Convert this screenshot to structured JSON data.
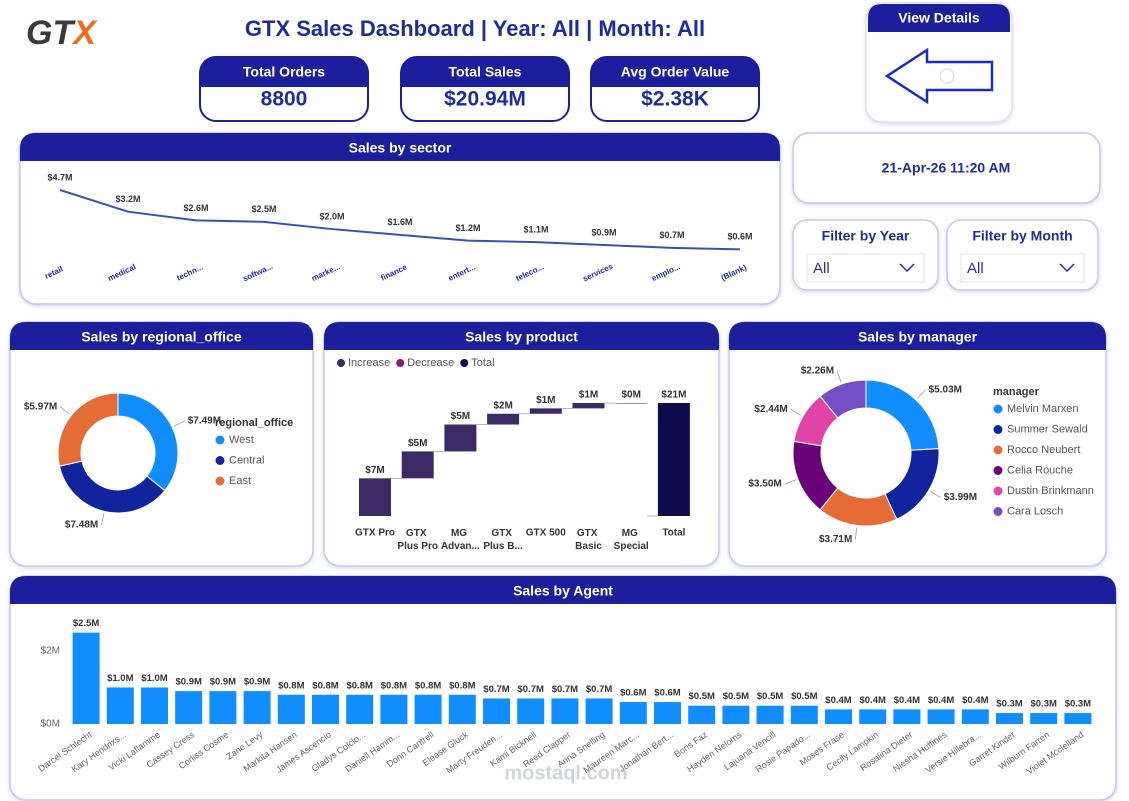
{
  "header": {
    "logo": "GTX",
    "title": "GTX Sales Dashboard | Year: All | Month: All",
    "button": "View Details"
  },
  "kpis": [
    {
      "label": "Total Orders",
      "value": "8800"
    },
    {
      "label": "Total Sales",
      "value": "$20.94M"
    },
    {
      "label": "Avg Order Value",
      "value": "$2.38K"
    }
  ],
  "datetime": "21-Apr-26 11:20 AM",
  "filters": [
    {
      "label": "Filter by Year",
      "value": "All"
    },
    {
      "label": "Filter by Month",
      "value": "All"
    }
  ],
  "watermark": "mostaql.com",
  "chart_data": [
    {
      "type": "line",
      "title": "Sales by sector",
      "categories": [
        "retail",
        "medical",
        "techn...",
        "softwa...",
        "marke...",
        "finance",
        "entert...",
        "teleco...",
        "services",
        "emplo...",
        "(Blank)"
      ],
      "values": [
        4.7,
        3.2,
        2.6,
        2.5,
        2.0,
        1.6,
        1.2,
        1.1,
        0.9,
        0.7,
        0.6
      ],
      "value_labels": [
        "$4.7M",
        "$3.2M",
        "$2.6M",
        "$2.5M",
        "$2.0M",
        "$1.6M",
        "$1.2M",
        "$1.1M",
        "$0.9M",
        "$0.7M",
        "$0.6M"
      ],
      "color": "#3F4FB0"
    },
    {
      "type": "donut",
      "title": "Sales by regional_office",
      "legend_title": "regional_office",
      "categories": [
        "West",
        "Central",
        "East"
      ],
      "values": [
        7.49,
        7.48,
        5.97
      ],
      "value_labels": [
        "$7.49M",
        "$7.48M",
        "$5.97M"
      ],
      "colors": [
        "#118DFF",
        "#12239E",
        "#E66C37"
      ]
    },
    {
      "type": "waterfall",
      "title": "Sales by product",
      "legend": [
        {
          "name": "Increase",
          "color": "#3B2A63"
        },
        {
          "name": "Decrease",
          "color": "#8A1C6E"
        },
        {
          "name": "Total",
          "color": "#0E0C4A"
        }
      ],
      "categories": [
        "GTX Pro",
        "GTX Plus Pro",
        "MG Advan...",
        "GTX Plus B...",
        "GTX 500",
        "GTX Basic",
        "MG Special",
        "Total"
      ],
      "values": [
        7,
        5,
        5,
        2,
        1,
        1,
        0,
        21
      ],
      "value_labels": [
        "$7M",
        "$5M",
        "$5M",
        "$2M",
        "$1M",
        "$1M",
        "$0M",
        "$21M"
      ]
    },
    {
      "type": "donut",
      "title": "Sales by manager",
      "legend_title": "manager",
      "categories": [
        "Melvin Marxen",
        "Summer Sewald",
        "Rocco Neubert",
        "Celia Rouche",
        "Dustin Brinkmann",
        "Cara Losch"
      ],
      "values": [
        5.03,
        3.99,
        3.71,
        3.5,
        2.44,
        2.26
      ],
      "value_labels": [
        "$5.03M",
        "$3.99M",
        "$3.71M",
        "$3.50M",
        "$2.44M",
        "$2.26M"
      ],
      "colors": [
        "#118DFF",
        "#12239E",
        "#E66C37",
        "#6B007B",
        "#E044A7",
        "#744EC2"
      ]
    },
    {
      "type": "bar",
      "title": "Sales by Agent",
      "categories": [
        "Darcel Schlecht",
        "Kary Hendrixs...",
        "Vicki Laflamme",
        "Cassey Cress",
        "Corliss Cosme",
        "Zane Levy",
        "Markita Hansen",
        "James Ascencio",
        "Gladys Colclo...",
        "Daniell Hamm...",
        "Donn Cantrell",
        "Elease Gluck",
        "Marty Freuden...",
        "Kami Bicknell",
        "Reed Clapper",
        "Anna Snelling",
        "Maureen Marc...",
        "Jonathan Bert...",
        "Boris Faz",
        "Hayden Neloms",
        "Lajuana Vencill",
        "Rosie Papado...",
        "Moses Frase",
        "Cecily Lampkin",
        "Rosalina Dieter",
        "Niesha Huffines",
        "Versie Hillebra...",
        "Garret Kinder",
        "Wilburn Farren",
        "Violet Mcclelland"
      ],
      "values": [
        2.5,
        1.0,
        1.0,
        0.9,
        0.9,
        0.9,
        0.8,
        0.8,
        0.8,
        0.8,
        0.8,
        0.8,
        0.7,
        0.7,
        0.7,
        0.7,
        0.6,
        0.6,
        0.5,
        0.5,
        0.5,
        0.5,
        0.4,
        0.4,
        0.4,
        0.4,
        0.4,
        0.3,
        0.3,
        0.3
      ],
      "value_labels": [
        "$2.5M",
        "$1.0M",
        "$1.0M",
        "$0.9M",
        "$0.9M",
        "$0.9M",
        "$0.8M",
        "$0.8M",
        "$0.8M",
        "$0.8M",
        "$0.8M",
        "$0.8M",
        "$0.7M",
        "$0.7M",
        "$0.7M",
        "$0.7M",
        "$0.6M",
        "$0.6M",
        "$0.5M",
        "$0.5M",
        "$0.5M",
        "$0.5M",
        "$0.4M",
        "$0.4M",
        "$0.4M",
        "$0.4M",
        "$0.4M",
        "$0.3M",
        "$0.3M",
        "$0.3M"
      ],
      "color": "#118DFF",
      "ylim": [
        0,
        2.6
      ],
      "yticks": [
        {
          "value": 0,
          "label": "$0M"
        },
        {
          "value": 2,
          "label": "$2M"
        }
      ]
    }
  ]
}
